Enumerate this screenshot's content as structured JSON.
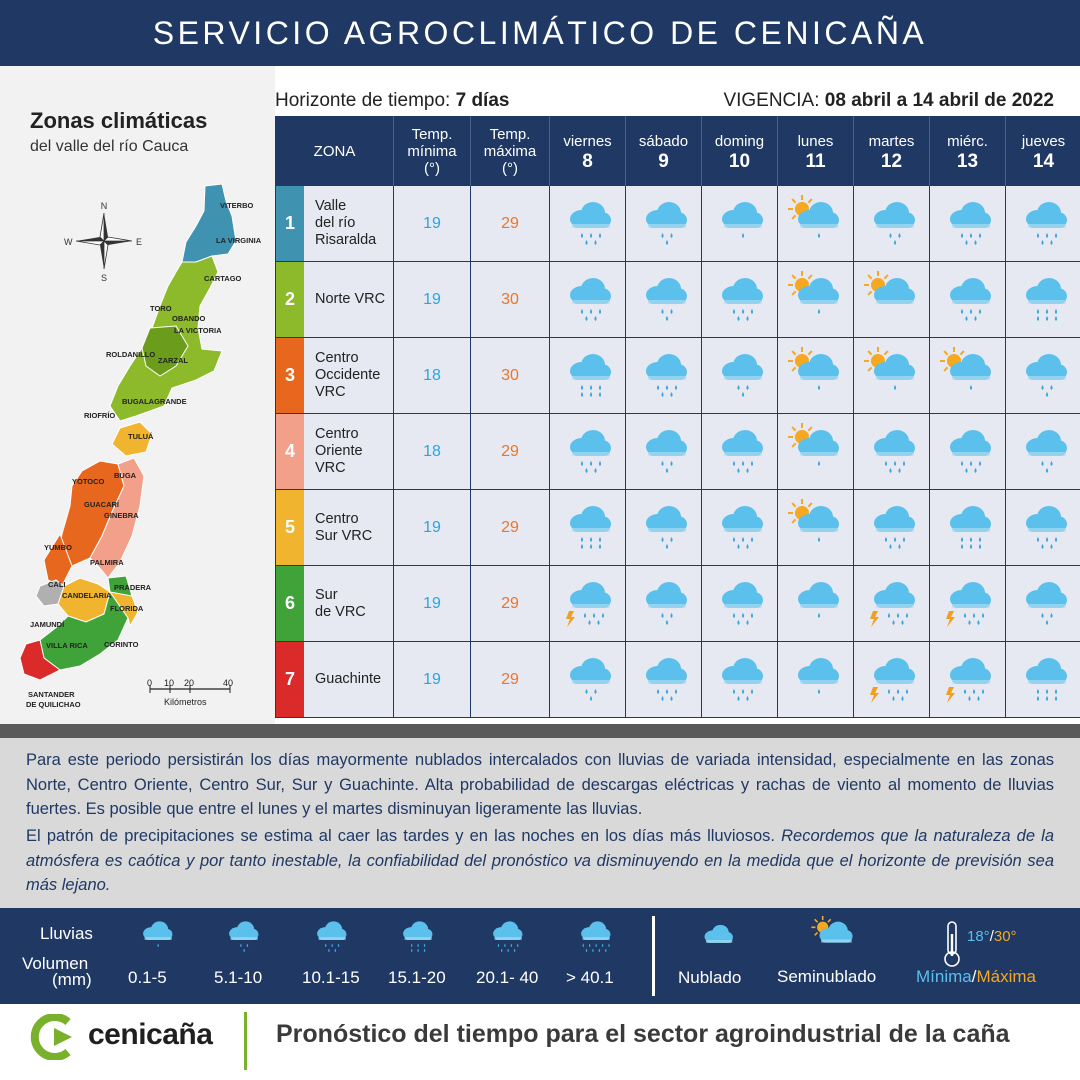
{
  "header": {
    "title": "SERVICIO AGROCLIMÁTICO DE CENICAÑA"
  },
  "map": {
    "title": "Zonas climáticas",
    "subtitle": "del valle del río Cauca",
    "compass": {
      "n": "N",
      "s": "S",
      "e": "E",
      "w": "W"
    },
    "towns": [
      "VITERBO",
      "LA VIRGINIA",
      "CARTAGO",
      "TORO",
      "OBANDO",
      "LA VICTORIA",
      "ROLDANILLO",
      "ZARZAL",
      "BUGALAGRANDE",
      "RIOFRÍO",
      "TULUÁ",
      "BUGA",
      "YOTOCO",
      "GUACARÍ",
      "GINEBRA",
      "YUMBO",
      "PALMIRA",
      "CALI",
      "CANDELARIA",
      "PRADERA",
      "FLORIDA",
      "JAMUNDÍ",
      "VILLA RICA",
      "CORINTO",
      "SANTANDER",
      "DE QUILICHAO"
    ],
    "scale": {
      "ticks": [
        "0",
        "10",
        "20",
        "40"
      ],
      "unit": "Kilómetros"
    }
  },
  "table": {
    "horizon_label": "Horizonte de tiempo:",
    "horizon_value": "7 días",
    "vigencia_label": "VIGENCIA:",
    "vigencia_value": "08 abril a 14 abril de 2022",
    "col_zona": "ZONA",
    "col_tmin": [
      "Temp.",
      "mínima",
      "(°)"
    ],
    "col_tmax": [
      "Temp.",
      "máxima",
      "(°)"
    ],
    "days": [
      {
        "name": "viernes",
        "num": "8"
      },
      {
        "name": "sábado",
        "num": "9"
      },
      {
        "name": "doming",
        "num": "10"
      },
      {
        "name": "lunes",
        "num": "11"
      },
      {
        "name": "martes",
        "num": "12"
      },
      {
        "name": "miérc.",
        "num": "13"
      },
      {
        "name": "jueves",
        "num": "14"
      }
    ],
    "zones": [
      {
        "id": "1",
        "name": [
          "Valle",
          "del río",
          "Risaralda"
        ],
        "color": "#3f92b0",
        "tmin": "19",
        "tmax": "29",
        "icons": [
          "cloud-rain-5-icon",
          "cloud-rain-3-icon",
          "cloud-rain-1-icon",
          "partly-cloudy-rain-1-icon",
          "cloud-rain-3-icon",
          "cloud-rain-5-icon",
          "cloud-rain-5-icon"
        ]
      },
      {
        "id": "2",
        "name": [
          "Norte VRC"
        ],
        "color": "#8cba2a",
        "tmin": "19",
        "tmax": "30",
        "icons": [
          "cloud-rain-5-icon",
          "cloud-rain-3-icon",
          "cloud-rain-5-icon",
          "partly-cloudy-rain-1-icon",
          "partly-cloudy-icon",
          "cloud-rain-5-icon",
          "cloud-rain-6-icon"
        ]
      },
      {
        "id": "3",
        "name": [
          "Centro",
          "Occidente",
          "VRC"
        ],
        "color": "#e8671e",
        "tmin": "18",
        "tmax": "30",
        "icons": [
          "cloud-rain-6-icon",
          "cloud-rain-5-icon",
          "cloud-rain-3-icon",
          "partly-cloudy-rain-1-icon",
          "partly-cloudy-rain-1-icon",
          "partly-cloudy-rain-1-icon",
          "cloud-rain-3-icon"
        ]
      },
      {
        "id": "4",
        "name": [
          "Centro",
          "Oriente",
          "VRC"
        ],
        "color": "#f2a08a",
        "tmin": "18",
        "tmax": "29",
        "icons": [
          "cloud-rain-5-icon",
          "cloud-rain-3-icon",
          "cloud-rain-5-icon",
          "partly-cloudy-rain-1-icon",
          "cloud-rain-5-icon",
          "cloud-rain-5-icon",
          "cloud-rain-3-icon"
        ]
      },
      {
        "id": "5",
        "name": [
          "Centro",
          "Sur VRC"
        ],
        "color": "#f0b42e",
        "tmin": "19",
        "tmax": "29",
        "icons": [
          "cloud-rain-6-icon",
          "cloud-rain-3-icon",
          "cloud-rain-5-icon",
          "partly-cloudy-rain-1-icon",
          "cloud-rain-5-icon",
          "cloud-rain-6-icon",
          "cloud-rain-5-icon"
        ]
      },
      {
        "id": "6",
        "name": [
          "Sur",
          "de VRC"
        ],
        "color": "#3fa33a",
        "tmin": "19",
        "tmax": "29",
        "icons": [
          "storm-rain-icon",
          "cloud-rain-3-icon",
          "cloud-rain-5-icon",
          "cloud-rain-1-icon",
          "storm-rain-icon",
          "storm-rain-icon",
          "cloud-rain-3-icon"
        ]
      },
      {
        "id": "7",
        "name": [
          "Guachinte"
        ],
        "color": "#da2a2a",
        "tmin": "19",
        "tmax": "29",
        "icons": [
          "cloud-rain-3-icon",
          "cloud-rain-5-icon",
          "cloud-rain-5-icon",
          "cloud-rain-1-icon",
          "storm-rain-icon",
          "storm-rain-icon",
          "cloud-rain-6-icon"
        ]
      }
    ]
  },
  "forecast_text": {
    "p1": "Para este periodo persistirán los días mayormente nublados intercalados con lluvias de variada intensidad, especialmente en las zonas Norte, Centro Oriente, Centro Sur, Sur y Guachinte.  Alta probabilidad de descargas eléctricas y rachas de viento al momento de lluvias fuertes.  Es posible que entre el lunes y el martes disminuyan ligeramente las lluvias.",
    "p2_normal": "El patrón de precipitaciones se estima al caer las tardes y en las noches en los días más lluviosos. ",
    "p2_italic": "Recordemos que la naturaleza de la atmósfera es caótica y por tanto inestable, la confiabilidad del pronóstico va disminuyendo en la medida que el horizonte de previsión sea más lejano."
  },
  "legend": {
    "lluvias": "Lluvias",
    "volumen": "Volumen",
    "mm": "(mm)",
    "ranges": [
      "0.1-5",
      "5.1-10",
      "10.1-15",
      "15.1-20",
      "20.1- 40",
      "> 40.1"
    ],
    "nublado": "Nublado",
    "seminublado": "Seminublado",
    "temp_example_min": "18°",
    "temp_example_max": "30°",
    "minima": "Mínima",
    "maxima": "Máxima",
    "slash": "/"
  },
  "footer": {
    "brand": "cenicaña",
    "tagline": "Pronóstico del tiempo para el sector agroindustrial de la caña"
  },
  "colors": {
    "navy": "#1f3864",
    "cell_bg": "#e6e9f1",
    "tmin": "#29a6dd",
    "tmax": "#e9762b",
    "cloud": "#5bc0ec",
    "drop": "#3da6dc",
    "sun": "#f6a821",
    "lightning": "#f0a01e"
  }
}
